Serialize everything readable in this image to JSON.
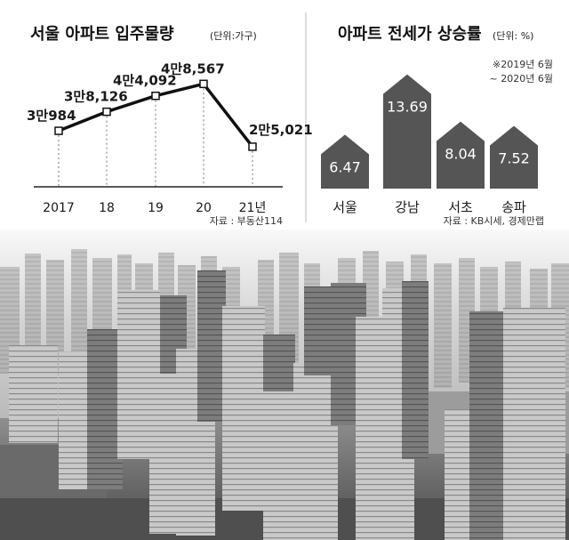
{
  "chart_data": [
    {
      "type": "line",
      "title": "서울 아파트 입주물량",
      "unit": "(단위:가구)",
      "categories": [
        "2017",
        "18",
        "19",
        "20",
        "21년"
      ],
      "values": [
        30984,
        38126,
        44092,
        48567,
        25021
      ],
      "value_labels": [
        "3만984",
        "3만8,126",
        "4만4,092",
        "4만8,567",
        "2만5,021"
      ],
      "source": "자료 : 부동산114"
    },
    {
      "type": "bar",
      "title": "아파트 전세가 상승률",
      "unit": "(단위: %)",
      "period_line1": "※2019년 6월",
      "period_line2": "~ 2020년 6월",
      "categories": [
        "서울",
        "강남",
        "서초",
        "송파"
      ],
      "values": [
        6.47,
        13.69,
        8.04,
        7.52
      ],
      "value_labels": [
        "6.47",
        "13.69",
        "8.04",
        "7.52"
      ],
      "source": "자료 : KB시세, 경제만랩"
    }
  ]
}
